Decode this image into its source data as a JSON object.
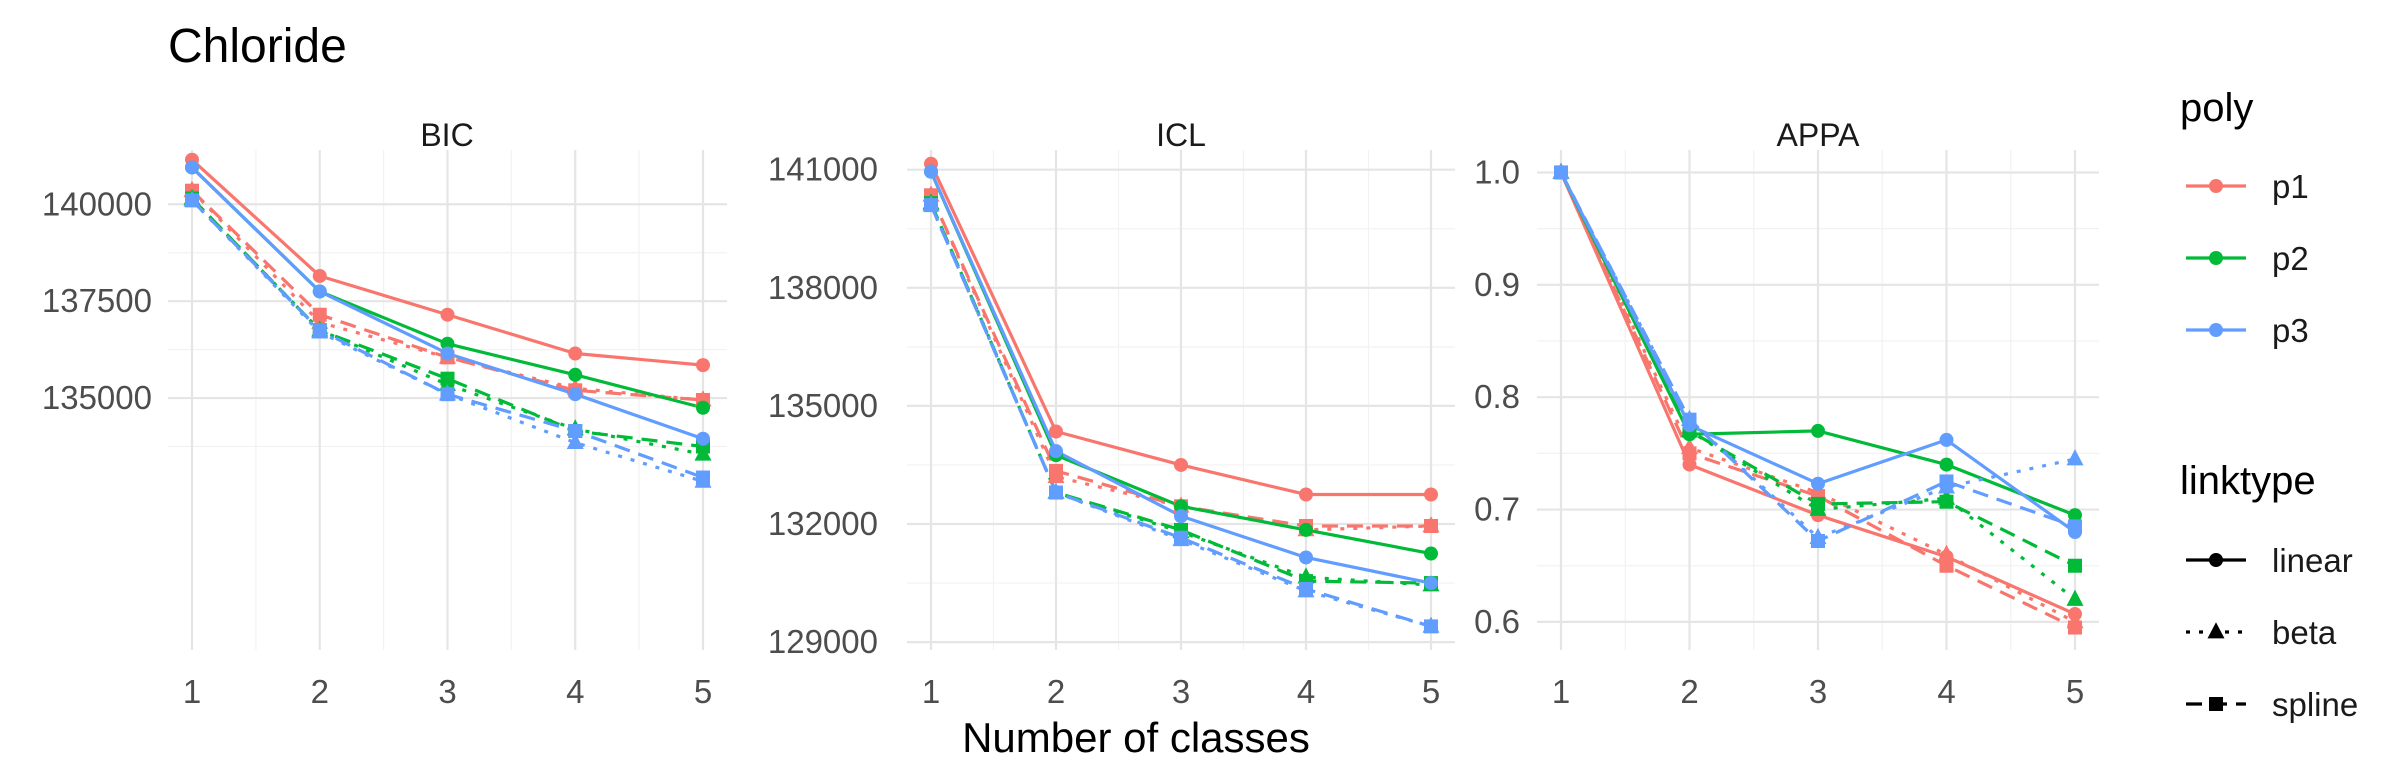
{
  "title": "Chloride",
  "x_axis_title": "Number of classes",
  "colors": {
    "p1": "#F8766D",
    "p2": "#00BA38",
    "p3": "#619CFF"
  },
  "chart_data": [
    {
      "type": "line",
      "panel": "BIC",
      "x": [
        1,
        2,
        3,
        4,
        5
      ],
      "ylim": [
        128500,
        141400
      ],
      "yticks": [
        135000,
        137500,
        140000
      ],
      "minor_yticks": [
        133750,
        136250,
        138750
      ],
      "series": [
        {
          "name": "p1-linear",
          "poly": "p1",
          "linktype": "linear",
          "values": [
            141150,
            138150,
            137150,
            136150,
            135850
          ]
        },
        {
          "name": "p1-beta",
          "poly": "p1",
          "linktype": "beta",
          "values": [
            140350,
            136950,
            136050,
            135250,
            134950
          ]
        },
        {
          "name": "p1-spline",
          "poly": "p1",
          "linktype": "spline",
          "values": [
            140350,
            137150,
            136050,
            135200,
            134950
          ]
        },
        {
          "name": "p2-linear",
          "poly": "p2",
          "linktype": "linear",
          "values": [
            140950,
            137750,
            136400,
            135600,
            134750
          ]
        },
        {
          "name": "p2-beta",
          "poly": "p2",
          "linktype": "beta",
          "values": [
            140150,
            136750,
            135350,
            134200,
            133550
          ]
        },
        {
          "name": "p2-spline",
          "poly": "p2",
          "linktype": "spline",
          "values": [
            140150,
            136750,
            135500,
            134150,
            133750
          ]
        },
        {
          "name": "p3-linear",
          "poly": "p3",
          "linktype": "linear",
          "values": [
            140950,
            137750,
            136150,
            135100,
            133950
          ]
        },
        {
          "name": "p3-beta",
          "poly": "p3",
          "linktype": "beta",
          "values": [
            140100,
            136700,
            135100,
            133850,
            132850
          ]
        },
        {
          "name": "p3-spline",
          "poly": "p3",
          "linktype": "spline",
          "values": [
            140100,
            136750,
            135100,
            134150,
            132950
          ]
        }
      ]
    },
    {
      "type": "line",
      "panel": "ICL",
      "x": [
        1,
        2,
        3,
        4,
        5
      ],
      "ylim": [
        128800,
        141500
      ],
      "yticks": [
        129000,
        132000,
        135000,
        138000,
        141000
      ],
      "minor_yticks": [
        130500,
        133500,
        136500,
        139500
      ],
      "series": [
        {
          "name": "p1-linear",
          "poly": "p1",
          "linktype": "linear",
          "values": [
            141150,
            134350,
            133500,
            132750,
            132750
          ]
        },
        {
          "name": "p1-beta",
          "poly": "p1",
          "linktype": "beta",
          "values": [
            140350,
            133200,
            132450,
            131850,
            131950
          ]
        },
        {
          "name": "p1-spline",
          "poly": "p1",
          "linktype": "spline",
          "values": [
            140350,
            133350,
            132450,
            131950,
            131950
          ]
        },
        {
          "name": "p2-linear",
          "poly": "p2",
          "linktype": "linear",
          "values": [
            140950,
            133750,
            132450,
            131850,
            131250
          ]
        },
        {
          "name": "p2-beta",
          "poly": "p2",
          "linktype": "beta",
          "values": [
            140150,
            132800,
            131800,
            130650,
            130450
          ]
        },
        {
          "name": "p2-spline",
          "poly": "p2",
          "linktype": "spline",
          "values": [
            140150,
            132800,
            131850,
            130550,
            130500
          ]
        },
        {
          "name": "p3-linear",
          "poly": "p3",
          "linktype": "linear",
          "values": [
            140950,
            133850,
            132200,
            131150,
            130500
          ]
        },
        {
          "name": "p3-beta",
          "poly": "p3",
          "linktype": "beta",
          "values": [
            140100,
            132800,
            131600,
            130300,
            129400
          ]
        },
        {
          "name": "p3-spline",
          "poly": "p3",
          "linktype": "spline",
          "values": [
            140100,
            132800,
            131650,
            130350,
            129400
          ]
        }
      ]
    },
    {
      "type": "line",
      "panel": "APPA",
      "x": [
        1,
        2,
        3,
        4,
        5
      ],
      "ylim": [
        0.575,
        1.02
      ],
      "yticks": [
        0.6,
        0.7,
        0.8,
        0.9,
        1.0
      ],
      "ytick_labels": [
        "0.6",
        "0.7",
        "0.8",
        "0.9",
        "1.0"
      ],
      "minor_yticks": [
        0.65,
        0.75,
        0.85,
        0.95
      ],
      "series": [
        {
          "name": "p1-linear",
          "poly": "p1",
          "linktype": "linear",
          "values": [
            1.0,
            0.74,
            0.695,
            0.658,
            0.607
          ]
        },
        {
          "name": "p1-beta",
          "poly": "p1",
          "linktype": "beta",
          "values": [
            1.0,
            0.755,
            0.715,
            0.66,
            0.6
          ]
        },
        {
          "name": "p1-spline",
          "poly": "p1",
          "linktype": "spline",
          "values": [
            1.0,
            0.75,
            0.712,
            0.65,
            0.595
          ]
        },
        {
          "name": "p2-linear",
          "poly": "p2",
          "linktype": "linear",
          "values": [
            1.0,
            0.767,
            0.77,
            0.74,
            0.695
          ]
        },
        {
          "name": "p2-beta",
          "poly": "p2",
          "linktype": "beta",
          "values": [
            1.0,
            0.77,
            0.7,
            0.71,
            0.62
          ]
        },
        {
          "name": "p2-spline",
          "poly": "p2",
          "linktype": "spline",
          "values": [
            1.0,
            0.77,
            0.705,
            0.707,
            0.65
          ]
        },
        {
          "name": "p3-linear",
          "poly": "p3",
          "linktype": "linear",
          "values": [
            1.0,
            0.775,
            0.723,
            0.762,
            0.68
          ]
        },
        {
          "name": "p3-beta",
          "poly": "p3",
          "linktype": "beta",
          "values": [
            1.0,
            0.78,
            0.675,
            0.72,
            0.745
          ]
        },
        {
          "name": "p3-spline",
          "poly": "p3",
          "linktype": "spline",
          "values": [
            1.0,
            0.78,
            0.672,
            0.725,
            0.685
          ]
        }
      ]
    }
  ],
  "legend": {
    "poly_title": "poly",
    "poly_items": [
      {
        "key": "p1",
        "label": "p1"
      },
      {
        "key": "p2",
        "label": "p2"
      },
      {
        "key": "p3",
        "label": "p3"
      }
    ],
    "linktype_title": "linktype",
    "linktype_items": [
      {
        "key": "linear",
        "label": "linear"
      },
      {
        "key": "beta",
        "label": "beta"
      },
      {
        "key": "spline",
        "label": "spline"
      }
    ]
  }
}
